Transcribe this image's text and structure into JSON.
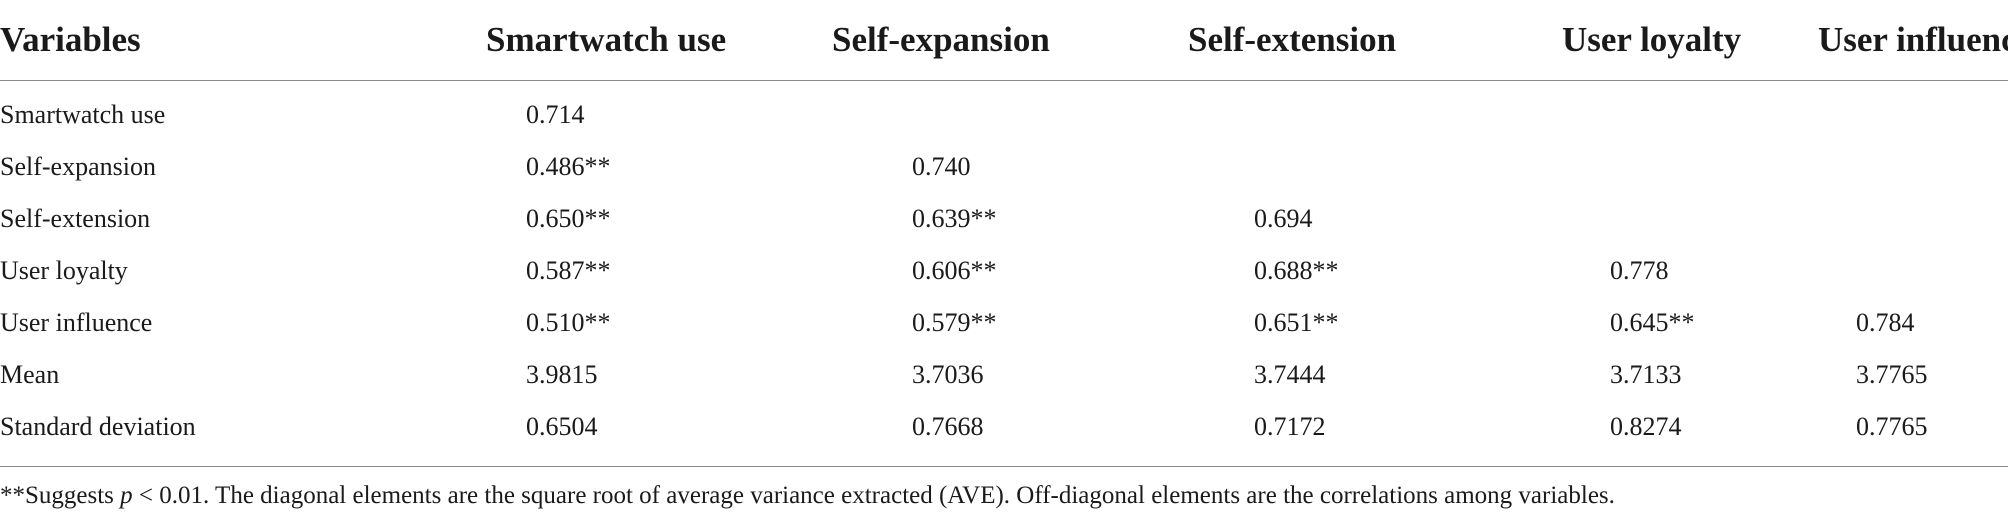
{
  "table": {
    "headers": [
      "Variables",
      "Smartwatch use",
      "Self-expansion",
      "Self-extension",
      "User loyalty",
      "User influence"
    ],
    "rows": [
      [
        "Smartwatch use",
        "0.714",
        "",
        "",
        "",
        ""
      ],
      [
        "Self-expansion",
        "0.486**",
        "0.740",
        "",
        "",
        ""
      ],
      [
        "Self-extension",
        "0.650**",
        "0.639**",
        "0.694",
        "",
        ""
      ],
      [
        "User loyalty",
        "0.587**",
        "0.606**",
        "0.688**",
        "0.778",
        ""
      ],
      [
        "User influence",
        "0.510**",
        "0.579**",
        "0.651**",
        "0.645**",
        "0.784"
      ],
      [
        "Mean",
        "3.9815",
        "3.7036",
        "3.7444",
        "3.7133",
        "3.7765"
      ],
      [
        "Standard deviation",
        "0.6504",
        "0.7668",
        "0.7172",
        "0.8274",
        "0.7765"
      ]
    ]
  },
  "footnote": {
    "prefix": "**Suggests ",
    "p_symbol": "p",
    "suffix": " < 0.01. The diagonal elements are the square root of average variance extracted (AVE). Off-diagonal elements are the correlations among variables."
  }
}
